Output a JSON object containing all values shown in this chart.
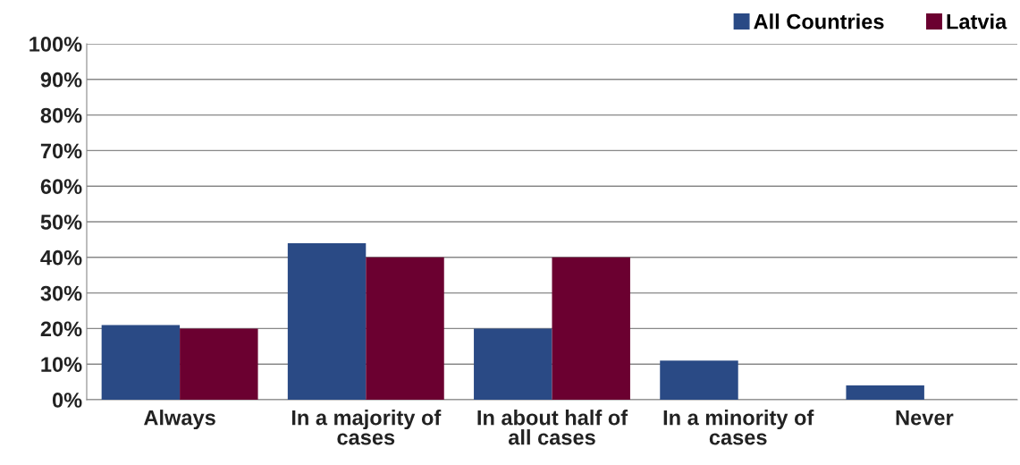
{
  "chart_data": {
    "type": "bar",
    "categories": [
      "Always",
      "In a majority of cases",
      "In about half of all cases",
      "In a minority of cases",
      "Never"
    ],
    "series": [
      {
        "name": "All Countries",
        "color": "#2a4a85",
        "values": [
          21,
          44,
          20,
          11,
          4
        ]
      },
      {
        "name": "Latvia",
        "color": "#6b0030",
        "values": [
          20,
          40,
          40,
          0,
          0
        ]
      }
    ],
    "ylim": [
      0,
      100
    ],
    "yticks": [
      {
        "value": 0,
        "label": "0%"
      },
      {
        "value": 10,
        "label": "10%"
      },
      {
        "value": 20,
        "label": "20%"
      },
      {
        "value": 30,
        "label": "30%"
      },
      {
        "value": 40,
        "label": "40%"
      },
      {
        "value": 50,
        "label": "50%"
      },
      {
        "value": 60,
        "label": "60%"
      },
      {
        "value": 70,
        "label": "70%"
      },
      {
        "value": 80,
        "label": "80%"
      },
      {
        "value": 90,
        "label": "90%"
      },
      {
        "value": 100,
        "label": "100%"
      }
    ],
    "grid": "y",
    "legend": "top right"
  }
}
